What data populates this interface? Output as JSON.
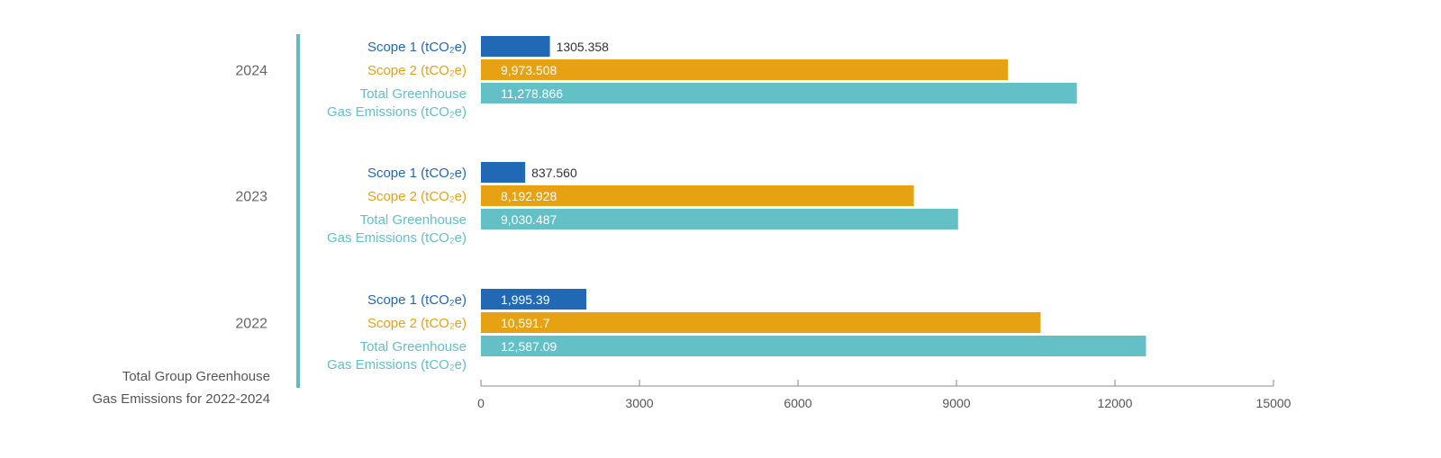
{
  "chart_data": {
    "type": "bar",
    "orientation": "horizontal",
    "title": "Total Group Greenhouse Gas Emissions for 2022-2024",
    "caption_lines": [
      "Total Group Greenhouse",
      "Gas Emissions for 2022-2024"
    ],
    "groups": [
      {
        "year": "2024",
        "bars": [
          {
            "series": "Scope 1",
            "value": 1305.358,
            "label": "1305.358"
          },
          {
            "series": "Scope 2",
            "value": 9973.508,
            "label": "9,973.508"
          },
          {
            "series": "Total",
            "value": 11278.866,
            "label": "11,278.866"
          }
        ]
      },
      {
        "year": "2023",
        "bars": [
          {
            "series": "Scope 1",
            "value": 837.56,
            "label": "837.560"
          },
          {
            "series": "Scope 2",
            "value": 8192.928,
            "label": "8,192.928"
          },
          {
            "series": "Total",
            "value": 9030.487,
            "label": "9,030.487"
          }
        ]
      },
      {
        "year": "2022",
        "bars": [
          {
            "series": "Scope 1",
            "value": 1995.39,
            "label": "1,995.39"
          },
          {
            "series": "Scope 2",
            "value": 10591.7,
            "label": "10,591.7"
          },
          {
            "series": "Total",
            "value": 12587.09,
            "label": "12,587.09"
          }
        ]
      }
    ],
    "series": [
      {
        "key": "Scope 1",
        "label_lines": [
          "Scope 1 (tCO₂e)"
        ],
        "color": "#2169B5"
      },
      {
        "key": "Scope 2",
        "label_lines": [
          "Scope 2 (tCO₂e)"
        ],
        "color": "#E6A212"
      },
      {
        "key": "Total",
        "label_lines": [
          "Total Greenhouse",
          "Gas Emissions (tCO₂e)"
        ],
        "color": "#62C0C6"
      }
    ],
    "xlim": [
      0,
      15000
    ],
    "xticks": [
      0,
      3000,
      6000,
      9000,
      12000,
      15000
    ],
    "grid": false,
    "accent_color": "#62B9C1"
  }
}
